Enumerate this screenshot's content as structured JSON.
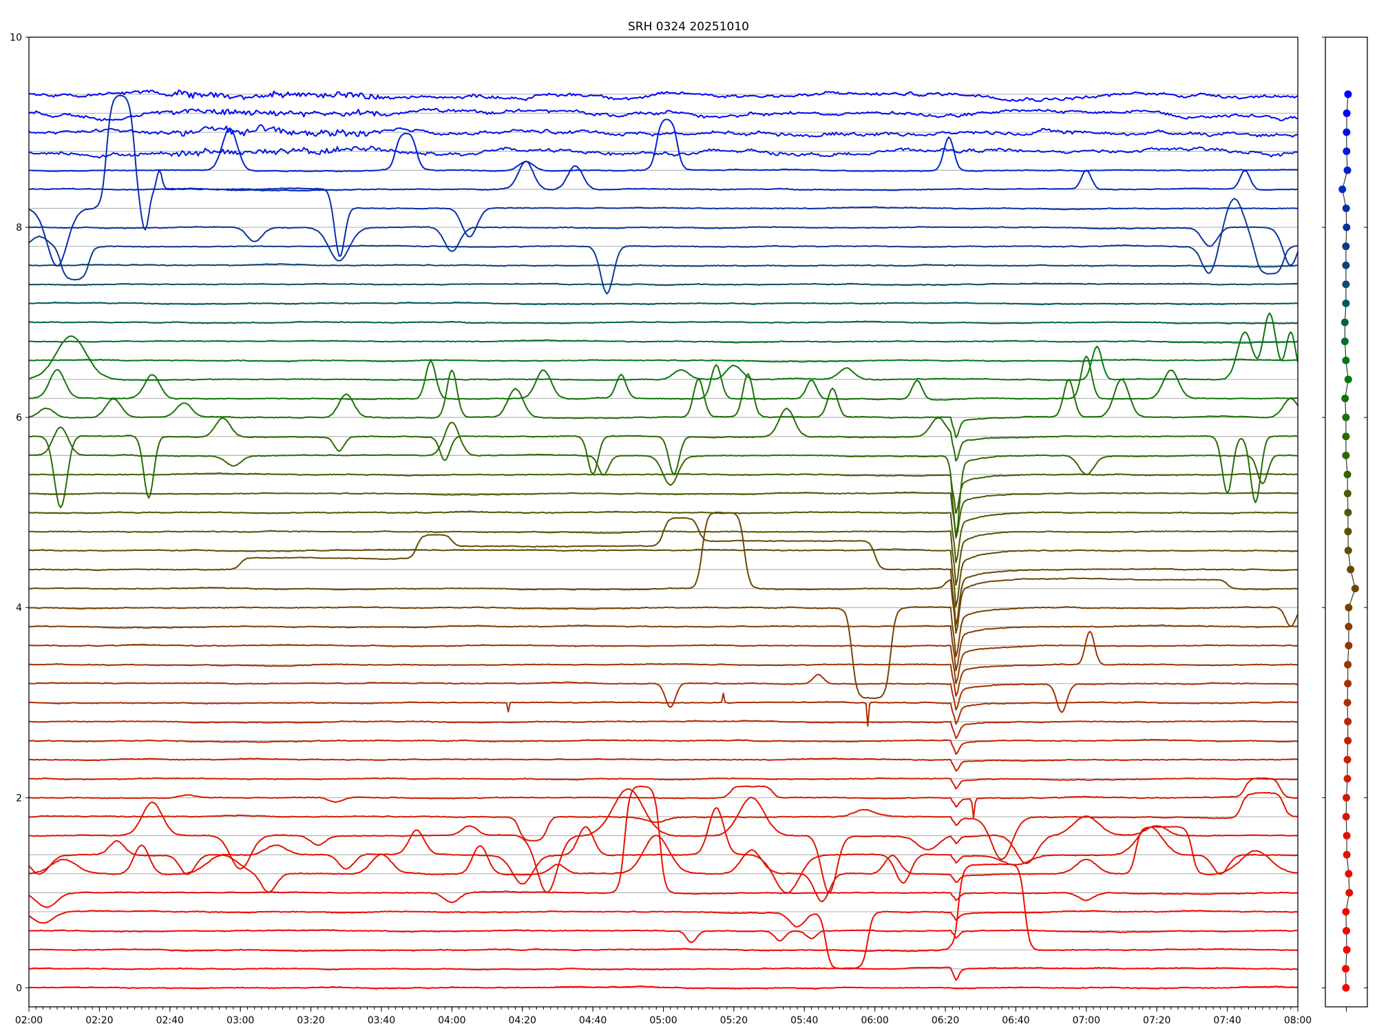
{
  "chart_data": [
    {
      "type": "line",
      "title": "SRH 0324 20251010",
      "xlabel": "",
      "ylabel": "",
      "x_unit": "minutes after 02:00",
      "xlim": [
        0,
        360
      ],
      "ylim": [
        -0.2,
        10
      ],
      "grid": "horizontal line at each trace baseline",
      "x_tick_labels": [
        "02:00",
        "02:20",
        "02:40",
        "03:00",
        "03:20",
        "03:40",
        "04:00",
        "04:20",
        "04:40",
        "05:00",
        "05:20",
        "05:40",
        "06:00",
        "06:20",
        "06:40",
        "07:00",
        "07:20",
        "07:40",
        "08:00"
      ],
      "x_tick_minutes": [
        0,
        20,
        40,
        60,
        80,
        100,
        120,
        140,
        160,
        180,
        200,
        220,
        240,
        260,
        280,
        300,
        320,
        340,
        360
      ],
      "y_tick_labels": [
        "0",
        "2",
        "4",
        "6",
        "8",
        "10"
      ],
      "y_ticks": [
        0,
        2,
        4,
        6,
        8,
        10
      ],
      "trace_spacing": 0.2,
      "trace_count": 48,
      "color_stops": [
        {
          "at": 0.0,
          "color": "#ff0000"
        },
        {
          "at": 2.0,
          "color": "#d41a00"
        },
        {
          "at": 3.2,
          "color": "#a83000"
        },
        {
          "at": 4.2,
          "color": "#6e4400"
        },
        {
          "at": 5.0,
          "color": "#4e5800"
        },
        {
          "at": 5.8,
          "color": "#256c00"
        },
        {
          "at": 6.6,
          "color": "#007a10"
        },
        {
          "at": 7.2,
          "color": "#005858"
        },
        {
          "at": 7.8,
          "color": "#0a3a8a"
        },
        {
          "at": 8.6,
          "color": "#0022d0"
        },
        {
          "at": 9.4,
          "color": "#0000ff"
        }
      ],
      "common_event": {
        "minute": 263,
        "label": "06:23",
        "affects_baselines": [
          0.2,
          6.0
        ],
        "peak_amplitude": -0.38,
        "peak_baseline": 4.5
      },
      "events": {
        "0.2": [
          [
            263,
            -0.05,
            1,
            "g"
          ]
        ],
        "0.4": [
          [
            273,
            0.9,
            9.5,
            "b"
          ]
        ],
        "0.6": [
          [
            188,
            -0.12,
            2,
            "g"
          ],
          [
            213,
            -0.1,
            2,
            "g"
          ],
          [
            222,
            -0.08,
            2,
            "g"
          ]
        ],
        "0.8": [
          [
            4,
            -0.12,
            4,
            "g"
          ],
          [
            218,
            -0.15,
            3,
            "g"
          ],
          [
            232,
            -0.6,
            6,
            "b"
          ]
        ],
        "1.0": [
          [
            5,
            -0.15,
            4,
            "g"
          ],
          [
            120,
            -0.1,
            3,
            "g"
          ],
          [
            174,
            1.12,
            5,
            "b"
          ],
          [
            300,
            -0.08,
            3,
            "g"
          ]
        ],
        "1.2": [
          [
            10,
            0.15,
            5,
            "g"
          ],
          [
            32,
            0.3,
            3,
            "g"
          ],
          [
            55,
            0.2,
            6,
            "g"
          ],
          [
            68,
            -0.2,
            3,
            "g"
          ],
          [
            100,
            0.2,
            4,
            "g"
          ],
          [
            128,
            0.3,
            3,
            "g"
          ],
          [
            150,
            0.1,
            3,
            "g"
          ],
          [
            178,
            0.4,
            5,
            "g"
          ],
          [
            205,
            0.25,
            4,
            "g"
          ],
          [
            225,
            -0.3,
            3,
            "g"
          ],
          [
            245,
            0.2,
            3,
            "g"
          ],
          [
            300,
            0.15,
            4,
            "g"
          ],
          [
            322,
            0.5,
            8,
            "b"
          ],
          [
            348,
            0.25,
            6,
            "g"
          ]
        ],
        "1.4": [
          [
            3,
            -0.2,
            4,
            "g"
          ],
          [
            25,
            0.15,
            3,
            "g"
          ],
          [
            45,
            -0.2,
            3,
            "g"
          ],
          [
            70,
            0.1,
            4,
            "g"
          ],
          [
            90,
            -0.15,
            3,
            "g"
          ],
          [
            110,
            0.25,
            3,
            "g"
          ],
          [
            140,
            -0.3,
            4,
            "g"
          ],
          [
            158,
            0.3,
            3,
            "g"
          ],
          [
            195,
            0.5,
            3,
            "g"
          ],
          [
            215,
            -0.4,
            5,
            "g"
          ],
          [
            248,
            -0.3,
            3,
            "g"
          ],
          [
            280,
            -0.1,
            5,
            "g"
          ],
          [
            318,
            0.3,
            5,
            "g"
          ],
          [
            338,
            -0.2,
            3,
            "g"
          ]
        ],
        "1.6": [
          [
            35,
            0.35,
            4,
            "g"
          ],
          [
            60,
            -0.35,
            4,
            "g"
          ],
          [
            82,
            -0.1,
            3,
            "g"
          ],
          [
            125,
            0.1,
            3,
            "g"
          ],
          [
            147,
            -0.6,
            4,
            "g"
          ],
          [
            170,
            0.5,
            6,
            "g"
          ],
          [
            205,
            0.4,
            5,
            "g"
          ],
          [
            227,
            -0.6,
            3,
            "g"
          ],
          [
            255,
            -0.15,
            4,
            "g"
          ],
          [
            283,
            -0.3,
            4,
            "g"
          ],
          [
            300,
            0.2,
            5,
            "g"
          ],
          [
            320,
            0.1,
            4,
            "g"
          ]
        ],
        "1.8": [
          [
            143,
            -0.25,
            4,
            "b"
          ],
          [
            178,
            -0.05,
            4,
            "g"
          ],
          [
            237,
            0.08,
            4,
            "g"
          ],
          [
            276,
            -0.45,
            4,
            "g"
          ],
          [
            350,
            0.25,
            6,
            "b"
          ]
        ],
        "2.0": [
          [
            45,
            0.03,
            3,
            "g"
          ],
          [
            87,
            -0.05,
            3,
            "g"
          ],
          [
            205,
            0.12,
            6,
            "b"
          ],
          [
            268,
            -0.2,
            0.4,
            "g"
          ],
          [
            350,
            0.2,
            5,
            "b"
          ]
        ],
        "3.0": [
          [
            136,
            -0.1,
            0.3,
            "g"
          ],
          [
            197,
            0.1,
            0.3,
            "g"
          ],
          [
            238,
            -0.25,
            0.3,
            "g"
          ]
        ],
        "3.2": [
          [
            182,
            -0.25,
            2,
            "g"
          ],
          [
            224,
            0.1,
            2,
            "g"
          ],
          [
            293,
            -0.3,
            2,
            "g"
          ]
        ],
        "3.4": [
          [
            301,
            0.35,
            1.8,
            "g"
          ]
        ],
        "4.0": [
          [
            239,
            -0.95,
            5.5,
            "b"
          ],
          [
            358,
            -0.2,
            2,
            "g"
          ]
        ],
        "4.2": [
          [
            197,
            0.8,
            6,
            "b"
          ],
          [
            300,
            0.1,
            40,
            "b"
          ]
        ],
        "4.4": [
          [
            90,
            0.12,
            30,
            "b"
          ],
          [
            150,
            0.25,
            40,
            "b"
          ],
          [
            210,
            0.3,
            30,
            "b"
          ]
        ],
        "5.6": [
          [
            9,
            0.3,
            3,
            "g"
          ],
          [
            58,
            -0.1,
            3,
            "g"
          ],
          [
            120,
            0.35,
            3,
            "g"
          ],
          [
            163,
            -0.2,
            2,
            "g"
          ],
          [
            182,
            -0.3,
            3,
            "g"
          ],
          [
            263,
            -0.5,
            1.5,
            "g"
          ],
          [
            300,
            -0.2,
            3,
            "g"
          ],
          [
            350,
            -0.3,
            2,
            "g"
          ]
        ],
        "5.8": [
          [
            9,
            -0.75,
            2.5,
            "g"
          ],
          [
            34,
            -0.65,
            2,
            "g"
          ],
          [
            55,
            0.2,
            3,
            "g"
          ],
          [
            88,
            -0.15,
            2,
            "g"
          ],
          [
            118,
            -0.25,
            2,
            "g"
          ],
          [
            160,
            -0.4,
            2,
            "g"
          ],
          [
            183,
            -0.4,
            2,
            "g"
          ],
          [
            215,
            0.3,
            3,
            "g"
          ],
          [
            258,
            0.2,
            3,
            "g"
          ],
          [
            340,
            -0.6,
            2,
            "g"
          ],
          [
            348,
            -0.7,
            2,
            "g"
          ]
        ],
        "6.0": [
          [
            5,
            0.1,
            3,
            "g"
          ],
          [
            24,
            0.2,
            3,
            "g"
          ],
          [
            44,
            0.15,
            3,
            "g"
          ],
          [
            90,
            0.25,
            3,
            "g"
          ],
          [
            120,
            0.5,
            2,
            "g"
          ],
          [
            138,
            0.3,
            3,
            "g"
          ],
          [
            190,
            0.4,
            2,
            "g"
          ],
          [
            204,
            0.45,
            2,
            "g"
          ],
          [
            228,
            0.3,
            2,
            "g"
          ],
          [
            295,
            0.4,
            2,
            "g"
          ],
          [
            310,
            0.4,
            3,
            "g"
          ],
          [
            358,
            0.2,
            3,
            "g"
          ]
        ],
        "6.2": [
          [
            8,
            0.3,
            3,
            "g"
          ],
          [
            35,
            0.25,
            3,
            "g"
          ],
          [
            114,
            0.4,
            2,
            "g"
          ],
          [
            146,
            0.3,
            3,
            "g"
          ],
          [
            168,
            0.25,
            2,
            "g"
          ],
          [
            195,
            0.35,
            2,
            "g"
          ],
          [
            222,
            0.2,
            2,
            "g"
          ],
          [
            252,
            0.2,
            2,
            "g"
          ],
          [
            300,
            0.45,
            2,
            "g"
          ],
          [
            324,
            0.3,
            3,
            "g"
          ]
        ],
        "6.4": [
          [
            12,
            0.45,
            6,
            "g"
          ],
          [
            185,
            0.1,
            3,
            "g"
          ],
          [
            200,
            0.15,
            3,
            "g"
          ],
          [
            232,
            0.12,
            3,
            "g"
          ],
          [
            303,
            0.35,
            2,
            "g"
          ],
          [
            345,
            0.5,
            3,
            "g"
          ],
          [
            352,
            0.7,
            2.5,
            "g"
          ],
          [
            358,
            0.5,
            2,
            "g"
          ]
        ],
        "8.0": [
          [
            64,
            -0.15,
            3,
            "g"
          ],
          [
            88,
            -0.35,
            4,
            "g"
          ],
          [
            120,
            -0.25,
            3,
            "g"
          ],
          [
            335,
            -0.2,
            3,
            "g"
          ],
          [
            358,
            -0.4,
            3,
            "g"
          ]
        ],
        "7.8": [
          [
            3,
            0.1,
            3,
            "g"
          ],
          [
            13,
            -0.35,
            4,
            "b"
          ],
          [
            164,
            -0.5,
            2.5,
            "g"
          ],
          [
            335,
            -0.3,
            3,
            "g"
          ],
          [
            342,
            0.5,
            4,
            "g"
          ],
          [
            352,
            -0.3,
            4,
            "b"
          ]
        ],
        "8.2": [
          [
            8,
            -0.6,
            4,
            "g"
          ],
          [
            26,
            1.2,
            4,
            "b"
          ],
          [
            33,
            -0.4,
            1.5,
            "g"
          ],
          [
            37,
            0.2,
            1,
            "g"
          ],
          [
            60,
            0.2,
            28,
            "b"
          ],
          [
            88,
            -0.6,
            2,
            "g"
          ],
          [
            125,
            -0.3,
            3,
            "g"
          ]
        ],
        "8.4": [
          [
            141,
            0.3,
            3,
            "g"
          ],
          [
            155,
            0.25,
            3,
            "g"
          ],
          [
            300,
            0.2,
            2,
            "g"
          ],
          [
            345,
            0.2,
            2,
            "g"
          ]
        ],
        "8.6": [
          [
            57,
            0.45,
            3,
            "g"
          ],
          [
            107,
            0.4,
            3,
            "b"
          ],
          [
            141,
            0.1,
            3,
            "g"
          ],
          [
            181,
            0.55,
            3,
            "b"
          ],
          [
            261,
            0.35,
            2,
            "g"
          ]
        ]
      },
      "noisy_baselines": [
        8.8,
        9.0,
        9.2,
        9.4
      ],
      "side_panel": {
        "type": "scatter-line",
        "y": [
          0,
          0.2,
          0.4,
          0.6,
          0.8,
          1.0,
          1.2,
          1.4,
          1.6,
          1.8,
          2.0,
          2.2,
          2.4,
          2.6,
          2.8,
          3.0,
          3.2,
          3.4,
          3.6,
          3.8,
          4.0,
          4.2,
          4.4,
          4.6,
          4.8,
          5.0,
          5.2,
          5.4,
          5.6,
          5.8,
          6.0,
          6.2,
          6.4,
          6.6,
          6.8,
          7.0,
          7.2,
          7.4,
          7.6,
          7.8,
          8.0,
          8.2,
          8.4,
          8.6,
          8.8,
          9.0,
          9.2,
          9.4
        ],
        "x": [
          -0.02,
          -0.03,
          0.02,
          0,
          -0.02,
          0.14,
          0.11,
          0.02,
          0.02,
          -0.01,
          0,
          0.05,
          0.05,
          0.07,
          0.07,
          0.05,
          0.07,
          0.07,
          0.11,
          0.11,
          0.11,
          0.42,
          0.2,
          0.09,
          0.08,
          0.08,
          0.06,
          0.05,
          -0.02,
          -0.02,
          -0.02,
          -0.06,
          0.09,
          -0.02,
          -0.07,
          -0.07,
          -0.02,
          -0.02,
          -0.02,
          -0.02,
          0.01,
          -0.01,
          -0.19,
          0.05,
          0.01,
          0.01,
          0.02,
          0.08
        ],
        "xlim": [
          -1,
          1
        ],
        "ylim": [
          -0.2,
          10
        ]
      }
    }
  ]
}
